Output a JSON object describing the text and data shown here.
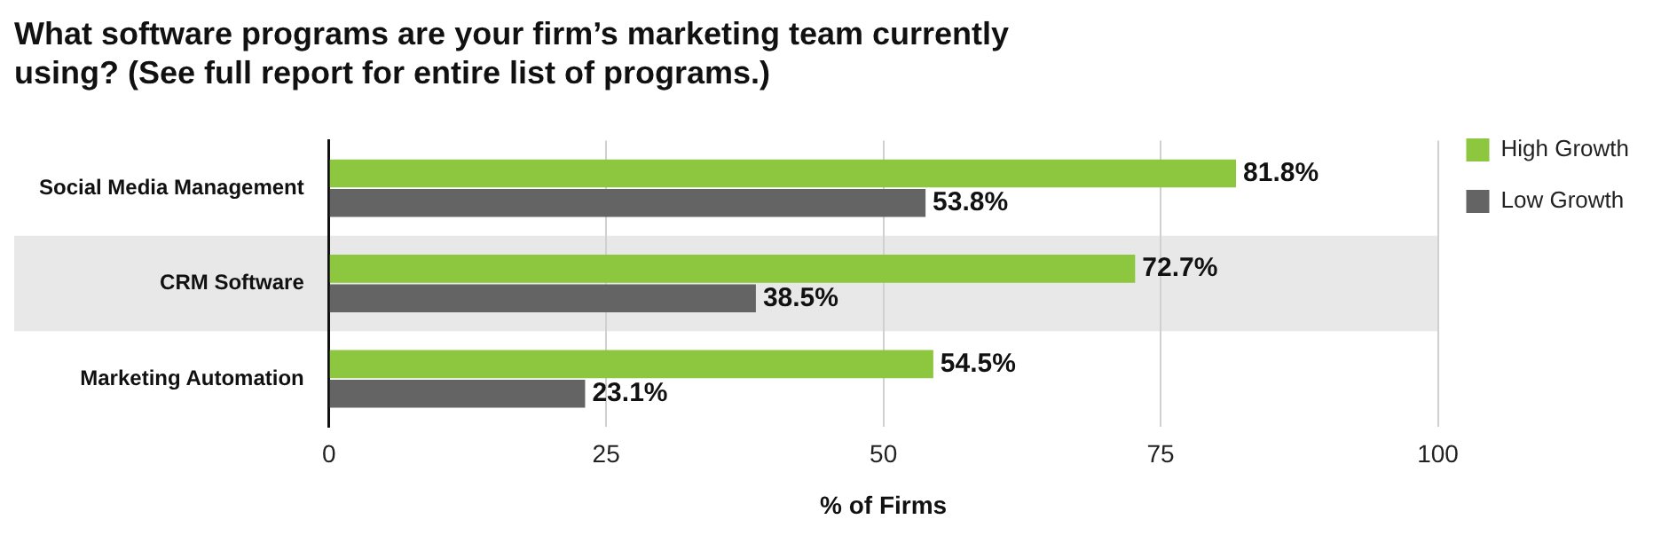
{
  "chart_data": {
    "type": "bar",
    "orientation": "horizontal",
    "title": "What software programs are your firm’s marketing team currently using? (See full report for entire list of programs.)",
    "xlabel": "% of Firms",
    "categories": [
      "Social Media Management",
      "CRM Software",
      "Marketing Automation"
    ],
    "series": [
      {
        "name": "High Growth",
        "color": "#8dc63f",
        "values": [
          81.8,
          72.7,
          54.5
        ],
        "value_labels": [
          "81.8%",
          "72.7%",
          "54.5%"
        ]
      },
      {
        "name": "Low Growth",
        "color": "#646464",
        "values": [
          53.8,
          38.5,
          23.1
        ],
        "value_labels": [
          "53.8%",
          "38.5%",
          "23.1%"
        ]
      }
    ],
    "xlim": [
      0,
      100
    ],
    "xticks": [
      0,
      25,
      50,
      75,
      100
    ],
    "grid": "x",
    "legend": "top right",
    "bands": [
      {
        "axis": "y",
        "from": "CRM Software",
        "to": "CRM Software",
        "color": "#e8e8e8"
      }
    ]
  }
}
